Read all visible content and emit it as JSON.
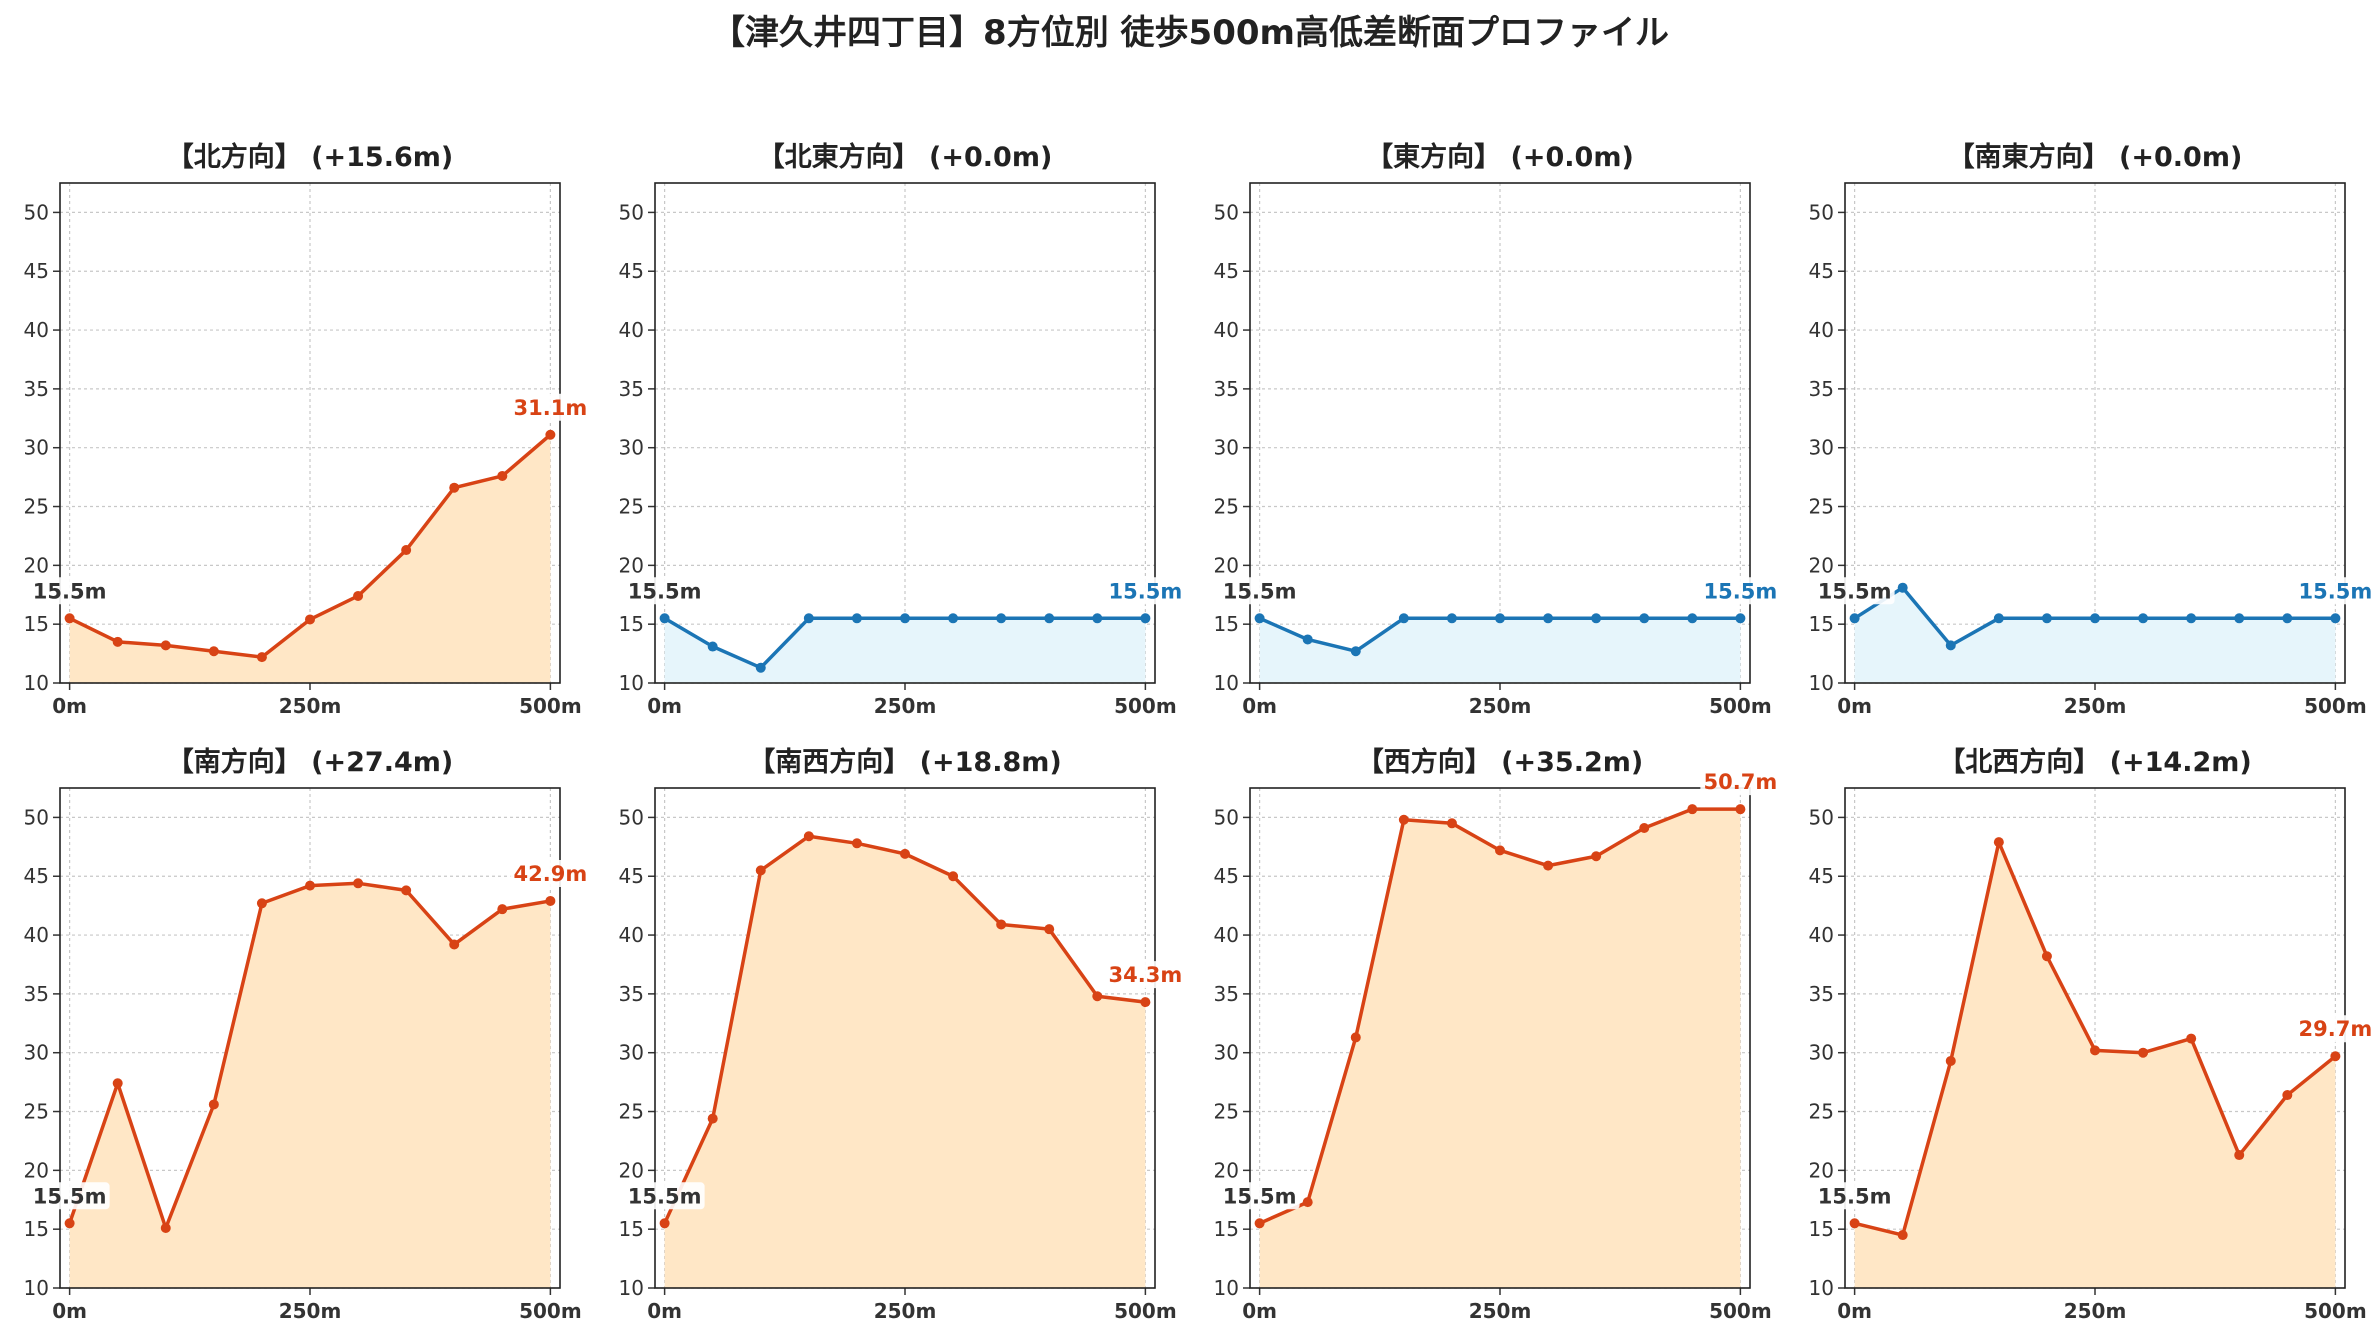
{
  "title": "【津久井四丁目】8方位別 徒歩500m高低差断面プロファイル",
  "colors": {
    "up_line": "#d84315",
    "up_fill": "#ffe7c6",
    "flat_line": "#1b75b5",
    "flat_fill": "#e6f5fb",
    "start_label": "#333333",
    "grid": "#c8c8c8"
  },
  "chart_data": [
    {
      "type": "area",
      "title": "【北方向】 (+15.6m)",
      "style": "up",
      "x": [
        0,
        50,
        100,
        150,
        200,
        250,
        300,
        350,
        400,
        450,
        500
      ],
      "values": [
        15.5,
        13.5,
        13.2,
        12.7,
        12.2,
        15.4,
        17.4,
        21.3,
        26.6,
        27.6,
        31.1
      ],
      "start_label": "15.5m",
      "end_label": "31.1m",
      "xticks": [
        "0m",
        "250m",
        "500m"
      ],
      "yticks": [
        "10",
        "15",
        "20",
        "25",
        "30",
        "35",
        "40",
        "45",
        "50"
      ],
      "ylim": [
        10,
        52.5
      ],
      "xlim": [
        -10,
        510
      ],
      "grid": true
    },
    {
      "type": "area",
      "title": "【北東方向】 (+0.0m)",
      "style": "flat",
      "x": [
        0,
        50,
        100,
        150,
        200,
        250,
        300,
        350,
        400,
        450,
        500
      ],
      "values": [
        15.5,
        13.1,
        11.3,
        15.5,
        15.5,
        15.5,
        15.5,
        15.5,
        15.5,
        15.5,
        15.5
      ],
      "start_label": "15.5m",
      "end_label": "15.5m",
      "xticks": [
        "0m",
        "250m",
        "500m"
      ],
      "yticks": [
        "10",
        "15",
        "20",
        "25",
        "30",
        "35",
        "40",
        "45",
        "50"
      ],
      "ylim": [
        10,
        52.5
      ],
      "xlim": [
        -10,
        510
      ],
      "grid": true
    },
    {
      "type": "area",
      "title": "【東方向】 (+0.0m)",
      "style": "flat",
      "x": [
        0,
        50,
        100,
        150,
        200,
        250,
        300,
        350,
        400,
        450,
        500
      ],
      "values": [
        15.5,
        13.7,
        12.7,
        15.5,
        15.5,
        15.5,
        15.5,
        15.5,
        15.5,
        15.5,
        15.5
      ],
      "start_label": "15.5m",
      "end_label": "15.5m",
      "xticks": [
        "0m",
        "250m",
        "500m"
      ],
      "yticks": [
        "10",
        "15",
        "20",
        "25",
        "30",
        "35",
        "40",
        "45",
        "50"
      ],
      "ylim": [
        10,
        52.5
      ],
      "xlim": [
        -10,
        510
      ],
      "grid": true
    },
    {
      "type": "area",
      "title": "【南東方向】 (+0.0m)",
      "style": "flat",
      "x": [
        0,
        50,
        100,
        150,
        200,
        250,
        300,
        350,
        400,
        450,
        500
      ],
      "values": [
        15.5,
        18.1,
        13.2,
        15.5,
        15.5,
        15.5,
        15.5,
        15.5,
        15.5,
        15.5,
        15.5
      ],
      "start_label": "15.5m",
      "end_label": "15.5m",
      "xticks": [
        "0m",
        "250m",
        "500m"
      ],
      "yticks": [
        "10",
        "15",
        "20",
        "25",
        "30",
        "35",
        "40",
        "45",
        "50"
      ],
      "ylim": [
        10,
        52.5
      ],
      "xlim": [
        -10,
        510
      ],
      "grid": true
    },
    {
      "type": "area",
      "title": "【南方向】 (+27.4m)",
      "style": "up",
      "x": [
        0,
        50,
        100,
        150,
        200,
        250,
        300,
        350,
        400,
        450,
        500
      ],
      "values": [
        15.5,
        27.4,
        15.1,
        25.6,
        42.7,
        44.2,
        44.4,
        43.8,
        39.2,
        42.2,
        42.9
      ],
      "start_label": "15.5m",
      "end_label": "42.9m",
      "xticks": [
        "0m",
        "250m",
        "500m"
      ],
      "yticks": [
        "10",
        "15",
        "20",
        "25",
        "30",
        "35",
        "40",
        "45",
        "50"
      ],
      "ylim": [
        10,
        52.5
      ],
      "xlim": [
        -10,
        510
      ],
      "grid": true
    },
    {
      "type": "area",
      "title": "【南西方向】 (+18.8m)",
      "style": "up",
      "x": [
        0,
        50,
        100,
        150,
        200,
        250,
        300,
        350,
        400,
        450,
        500
      ],
      "values": [
        15.5,
        24.4,
        45.5,
        48.4,
        47.8,
        46.9,
        45.0,
        40.9,
        40.5,
        34.8,
        34.3
      ],
      "start_label": "15.5m",
      "end_label": "34.3m",
      "xticks": [
        "0m",
        "250m",
        "500m"
      ],
      "yticks": [
        "10",
        "15",
        "20",
        "25",
        "30",
        "35",
        "40",
        "45",
        "50"
      ],
      "ylim": [
        10,
        52.5
      ],
      "xlim": [
        -10,
        510
      ],
      "grid": true
    },
    {
      "type": "area",
      "title": "【西方向】 (+35.2m)",
      "style": "up",
      "x": [
        0,
        50,
        100,
        150,
        200,
        250,
        300,
        350,
        400,
        450,
        500
      ],
      "values": [
        15.5,
        17.3,
        31.3,
        49.8,
        49.5,
        47.2,
        45.9,
        46.7,
        49.1,
        50.7,
        50.7
      ],
      "start_label": "15.5m",
      "end_label": "50.7m",
      "xticks": [
        "0m",
        "250m",
        "500m"
      ],
      "yticks": [
        "10",
        "15",
        "20",
        "25",
        "30",
        "35",
        "40",
        "45",
        "50"
      ],
      "ylim": [
        10,
        52.5
      ],
      "xlim": [
        -10,
        510
      ],
      "grid": true
    },
    {
      "type": "area",
      "title": "【北西方向】 (+14.2m)",
      "style": "up",
      "x": [
        0,
        50,
        100,
        150,
        200,
        250,
        300,
        350,
        400,
        450,
        500
      ],
      "values": [
        15.5,
        14.5,
        29.3,
        47.9,
        38.2,
        30.2,
        30.0,
        31.2,
        21.3,
        26.4,
        29.7
      ],
      "start_label": "15.5m",
      "end_label": "29.7m",
      "xticks": [
        "0m",
        "250m",
        "500m"
      ],
      "yticks": [
        "10",
        "15",
        "20",
        "25",
        "30",
        "35",
        "40",
        "45",
        "50"
      ],
      "ylim": [
        10,
        52.5
      ],
      "xlim": [
        -10,
        510
      ],
      "grid": true
    }
  ]
}
